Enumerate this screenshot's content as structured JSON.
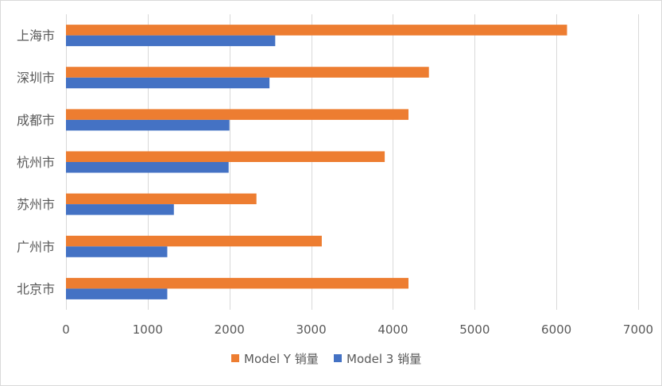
{
  "chart_data": {
    "type": "bar",
    "orientation": "horizontal",
    "categories": [
      "上海市",
      "深圳市",
      "成都市",
      "杭州市",
      "苏州市",
      "广州市",
      "北京市"
    ],
    "series": [
      {
        "name": "Model Y 销量",
        "color": "#ED7D31",
        "values": [
          6130,
          4440,
          4190,
          3900,
          2330,
          3130,
          4190
        ]
      },
      {
        "name": "Model 3 销量",
        "color": "#4472C4",
        "values": [
          2560,
          2490,
          2000,
          1990,
          1320,
          1240,
          1240
        ]
      }
    ],
    "xlim": [
      0,
      7000
    ],
    "xticks": [
      0,
      1000,
      2000,
      3000,
      4000,
      5000,
      6000,
      7000
    ],
    "xtick_labels": [
      "0",
      "1000",
      "2000",
      "3000",
      "4000",
      "5000",
      "6000",
      "7000"
    ],
    "title": "",
    "xlabel": "",
    "ylabel": "",
    "grid": "vertical",
    "legend": "bottom",
    "colors": {
      "gridline": "#d9d9d9",
      "text": "#595959"
    }
  }
}
